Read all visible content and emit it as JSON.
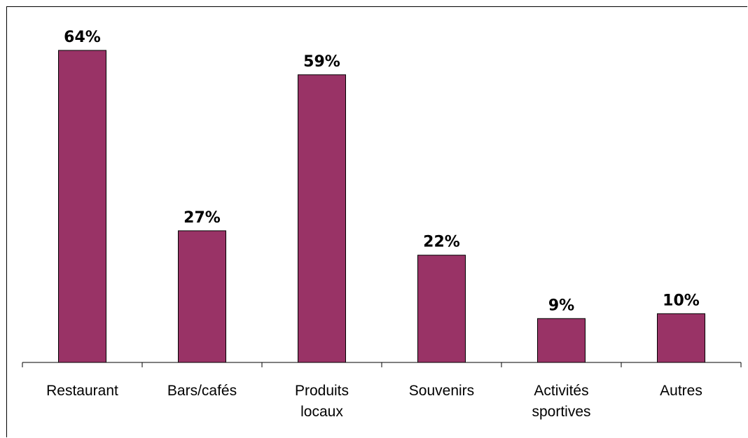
{
  "chart_data": {
    "type": "bar",
    "categories": [
      [
        "Restaurant"
      ],
      [
        "Bars/cafés"
      ],
      [
        "Produits",
        "locaux"
      ],
      [
        "Souvenirs"
      ],
      [
        "Activités",
        "sportives"
      ],
      [
        "Autres"
      ]
    ],
    "values": [
      64,
      27,
      59,
      22,
      9,
      10
    ],
    "value_labels": [
      "64%",
      "27%",
      "59%",
      "22%",
      "9%",
      "10%"
    ],
    "ylim": [
      0,
      70
    ],
    "grid": false,
    "legend": false,
    "bar_color": "#993366"
  }
}
